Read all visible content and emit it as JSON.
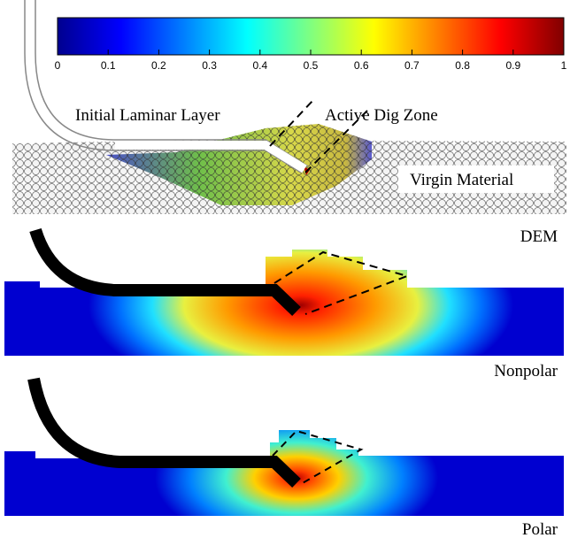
{
  "colorbar": {
    "range": [
      0,
      1
    ],
    "ticks": [
      0,
      0.1,
      0.2,
      0.3,
      0.4,
      0.5,
      0.6,
      0.7,
      0.8,
      0.9,
      1
    ]
  },
  "panels": [
    {
      "label": "DEM",
      "annotations": [
        "Initial Laminar Layer",
        "Active Dig Zone",
        "Virgin Material"
      ]
    },
    {
      "label": "Nonpolar"
    },
    {
      "label": "Polar"
    }
  ]
}
